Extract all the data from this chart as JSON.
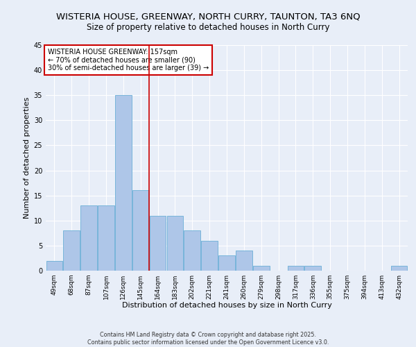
{
  "title": "WISTERIA HOUSE, GREENWAY, NORTH CURRY, TAUNTON, TA3 6NQ",
  "subtitle": "Size of property relative to detached houses in North Curry",
  "xlabel": "Distribution of detached houses by size in North Curry",
  "ylabel": "Number of detached properties",
  "categories": [
    "49sqm",
    "68sqm",
    "87sqm",
    "107sqm",
    "126sqm",
    "145sqm",
    "164sqm",
    "183sqm",
    "202sqm",
    "221sqm",
    "241sqm",
    "260sqm",
    "279sqm",
    "298sqm",
    "317sqm",
    "336sqm",
    "355sqm",
    "375sqm",
    "394sqm",
    "413sqm",
    "432sqm"
  ],
  "values": [
    2,
    8,
    13,
    13,
    35,
    16,
    11,
    11,
    8,
    6,
    3,
    4,
    1,
    0,
    1,
    1,
    0,
    0,
    0,
    0,
    1
  ],
  "bar_color": "#aec6e8",
  "bar_edge_color": "#6aaed6",
  "background_color": "#e8eef8",
  "grid_color": "#ffffff",
  "vline_x": 5.5,
  "vline_color": "#cc0000",
  "annotation_text": "WISTERIA HOUSE GREENWAY: 157sqm\n← 70% of detached houses are smaller (90)\n30% of semi-detached houses are larger (39) →",
  "annotation_box_facecolor": "#ffffff",
  "annotation_box_edgecolor": "#cc0000",
  "footer_line1": "Contains HM Land Registry data © Crown copyright and database right 2025.",
  "footer_line2": "Contains public sector information licensed under the Open Government Licence v3.0.",
  "ylim": [
    0,
    45
  ],
  "yticks": [
    0,
    5,
    10,
    15,
    20,
    25,
    30,
    35,
    40,
    45
  ]
}
